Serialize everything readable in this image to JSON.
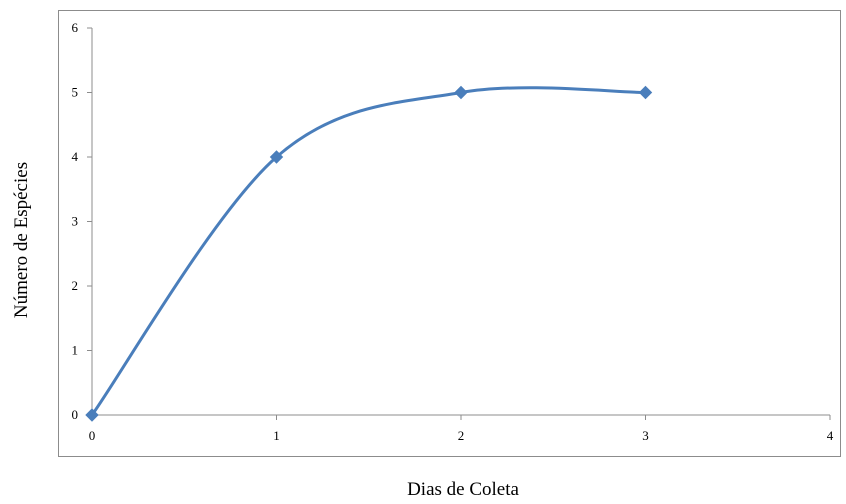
{
  "chart_data": {
    "type": "line",
    "title": "",
    "xlabel": "Dias de Coleta",
    "ylabel": "Número de Espécies",
    "xlim": [
      0,
      4
    ],
    "ylim": [
      0,
      6
    ],
    "x_ticks": [
      "0",
      "1",
      "2",
      "3",
      "4"
    ],
    "y_ticks": [
      "0",
      "1",
      "2",
      "3",
      "4",
      "5",
      "6"
    ],
    "grid": false,
    "legend": "none",
    "smooth": true,
    "series": [
      {
        "x": [
          0,
          1,
          2,
          3
        ],
        "values": [
          0,
          4,
          5,
          5
        ],
        "color": "#4a7ebb",
        "marker": "diamond"
      }
    ]
  }
}
